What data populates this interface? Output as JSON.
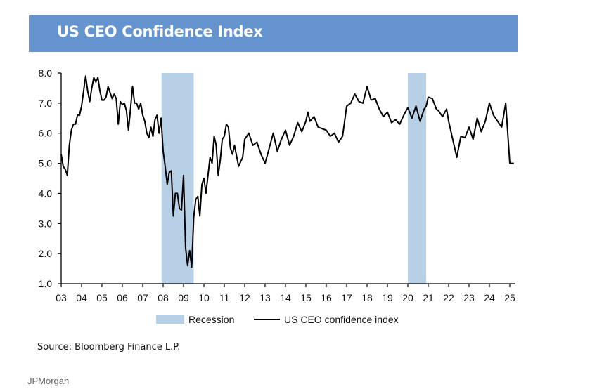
{
  "header": {
    "title": "US CEO Confidence Index"
  },
  "footer": {
    "source": "Source: Bloomberg Finance L.P.",
    "credit": "JPMorgan"
  },
  "colors": {
    "title_bar": "#6593cd",
    "recession": "#b8d0e6",
    "line": "#000000"
  },
  "chart_data": {
    "type": "line",
    "title": "US CEO Confidence Index",
    "xlabel": "",
    "ylabel": "",
    "xlim": [
      2003.0,
      2025.2
    ],
    "ylim": [
      1.0,
      8.0
    ],
    "yticks": [
      1.0,
      2.0,
      3.0,
      4.0,
      5.0,
      6.0,
      7.0,
      8.0
    ],
    "ytick_labels": [
      "1.0",
      "2.0",
      "3.0",
      "4.0",
      "5.0",
      "6.0",
      "7.0",
      "8.0"
    ],
    "xticks": [
      2003,
      2004,
      2005,
      2006,
      2007,
      2008,
      2009,
      2010,
      2011,
      2012,
      2013,
      2014,
      2015,
      2016,
      2017,
      2018,
      2019,
      2020,
      2021,
      2022,
      2023,
      2024,
      2025
    ],
    "xtick_labels": [
      "03",
      "04",
      "05",
      "06",
      "07",
      "08",
      "09",
      "10",
      "11",
      "12",
      "13",
      "14",
      "15",
      "16",
      "17",
      "18",
      "19",
      "20",
      "21",
      "22",
      "23",
      "24",
      "25"
    ],
    "grid": false,
    "legend": {
      "position": "bottom",
      "entries": [
        {
          "label": "Recession",
          "kind": "band"
        },
        {
          "label": "US CEO confidence index",
          "kind": "line"
        }
      ]
    },
    "recessions": [
      {
        "start": 2007.92,
        "end": 2009.5
      },
      {
        "start": 2020.0,
        "end": 2020.9
      }
    ],
    "series": [
      {
        "name": "US CEO confidence index",
        "x": [
          2003.0,
          2003.1,
          2003.2,
          2003.3,
          2003.4,
          2003.5,
          2003.6,
          2003.7,
          2003.8,
          2003.9,
          2004.0,
          2004.1,
          2004.2,
          2004.3,
          2004.4,
          2004.5,
          2004.6,
          2004.7,
          2004.8,
          2004.9,
          2005.0,
          2005.1,
          2005.2,
          2005.3,
          2005.4,
          2005.5,
          2005.6,
          2005.7,
          2005.8,
          2005.9,
          2006.0,
          2006.1,
          2006.2,
          2006.3,
          2006.4,
          2006.5,
          2006.6,
          2006.7,
          2006.8,
          2006.9,
          2007.0,
          2007.1,
          2007.2,
          2007.3,
          2007.4,
          2007.5,
          2007.6,
          2007.7,
          2007.8,
          2007.9,
          2008.0,
          2008.1,
          2008.2,
          2008.3,
          2008.4,
          2008.5,
          2008.6,
          2008.7,
          2008.8,
          2008.9,
          2009.0,
          2009.1,
          2009.2,
          2009.3,
          2009.4,
          2009.5,
          2009.6,
          2009.7,
          2009.8,
          2009.9,
          2010.0,
          2010.1,
          2010.2,
          2010.3,
          2010.4,
          2010.5,
          2010.6,
          2010.7,
          2010.8,
          2010.9,
          2011.0,
          2011.1,
          2011.2,
          2011.3,
          2011.4,
          2011.5,
          2011.7,
          2011.9,
          2012.0,
          2012.2,
          2012.4,
          2012.6,
          2012.8,
          2013.0,
          2013.2,
          2013.4,
          2013.6,
          2013.8,
          2014.0,
          2014.2,
          2014.4,
          2014.6,
          2014.8,
          2015.0,
          2015.1,
          2015.2,
          2015.4,
          2015.6,
          2015.8,
          2016.0,
          2016.2,
          2016.4,
          2016.6,
          2016.8,
          2017.0,
          2017.2,
          2017.4,
          2017.6,
          2017.8,
          2018.0,
          2018.2,
          2018.4,
          2018.6,
          2018.8,
          2019.0,
          2019.2,
          2019.4,
          2019.6,
          2019.8,
          2020.0,
          2020.2,
          2020.4,
          2020.6,
          2020.8,
          2020.9,
          2021.0,
          2021.2,
          2021.4,
          2021.5,
          2021.7,
          2021.9,
          2022.0,
          2022.2,
          2022.4,
          2022.6,
          2022.8,
          2023.0,
          2023.2,
          2023.4,
          2023.6,
          2023.8,
          2024.0,
          2024.2,
          2024.4,
          2024.6,
          2024.8,
          2025.0,
          2025.1,
          2025.2
        ],
        "values": [
          5.3,
          4.9,
          4.8,
          4.6,
          5.6,
          6.1,
          6.3,
          6.3,
          6.6,
          6.6,
          6.9,
          7.4,
          7.9,
          7.4,
          7.05,
          7.5,
          7.85,
          7.7,
          7.85,
          7.4,
          7.1,
          7.1,
          7.2,
          7.55,
          7.35,
          7.15,
          7.3,
          7.15,
          6.3,
          7.05,
          6.95,
          7.0,
          6.75,
          6.1,
          6.8,
          7.55,
          7.0,
          7.0,
          6.8,
          7.0,
          6.6,
          6.4,
          6.0,
          5.85,
          6.2,
          5.9,
          6.45,
          6.6,
          6.0,
          6.5,
          5.4,
          4.9,
          4.3,
          4.7,
          4.75,
          3.25,
          4.0,
          4.0,
          3.5,
          3.45,
          4.6,
          2.2,
          1.6,
          2.1,
          1.55,
          3.2,
          3.8,
          3.9,
          3.25,
          4.3,
          4.5,
          4.0,
          4.6,
          5.2,
          5.0,
          5.9,
          5.6,
          4.6,
          5.1,
          5.8,
          5.9,
          6.3,
          6.2,
          5.5,
          5.3,
          5.6,
          4.9,
          5.2,
          5.8,
          6.0,
          5.6,
          5.7,
          5.3,
          5.0,
          5.5,
          6.0,
          5.4,
          5.8,
          6.1,
          5.6,
          5.9,
          6.35,
          6.05,
          6.4,
          6.7,
          6.4,
          6.55,
          6.2,
          6.15,
          6.1,
          5.9,
          6.0,
          5.7,
          5.9,
          6.9,
          7.0,
          7.3,
          7.05,
          7.0,
          7.55,
          7.1,
          7.15,
          6.8,
          6.55,
          6.7,
          6.35,
          6.45,
          6.3,
          6.6,
          6.85,
          6.5,
          6.9,
          6.4,
          6.8,
          6.9,
          7.2,
          7.15,
          6.8,
          6.75,
          6.55,
          6.8,
          6.4,
          5.8,
          5.2,
          5.9,
          5.85,
          6.2,
          5.8,
          6.5,
          6.05,
          6.4,
          7.0,
          6.6,
          6.4,
          6.2,
          7.0,
          5.0,
          5.0,
          5.0
        ]
      }
    ]
  }
}
